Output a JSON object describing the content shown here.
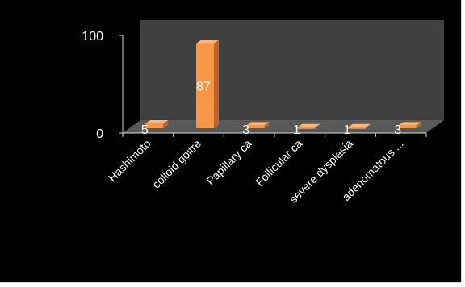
{
  "chart_data": {
    "type": "bar",
    "style": "3d-column",
    "categories": [
      "Hashimoto",
      "colloid goitre",
      "Papillary ca",
      "Follicular ca",
      "severe dysplasia",
      "adenomatous ..."
    ],
    "values": [
      5,
      87,
      3,
      1,
      1,
      3
    ],
    "data_labels": [
      "5",
      "87",
      "3",
      "1",
      "1",
      "3"
    ],
    "yticks": [
      "0",
      "100"
    ],
    "ylim": [
      0,
      100
    ],
    "grid": false,
    "legend": "none",
    "colors": {
      "background": "#000000",
      "wall": "#404040",
      "floor": "#595959",
      "bar_front": "#f79646",
      "bar_side": "#c0622a",
      "bar_top": "#fbb57a",
      "axis": "#d9d9d9",
      "text": "#ffffff",
      "data_label": "#ffffff"
    }
  }
}
